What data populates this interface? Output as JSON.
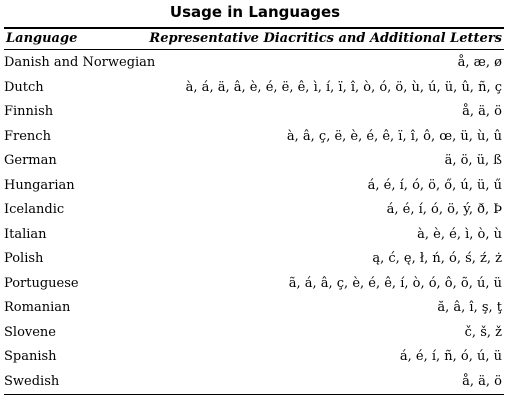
{
  "title": "Usage in Languages",
  "header": {
    "language": "Language",
    "diacritics": "Representative Diacritics and Additional Letters"
  },
  "rows": [
    {
      "language": "Danish and Norwegian",
      "diacritics": "å, æ, ø"
    },
    {
      "language": "Dutch",
      "diacritics": "à, á, ä, â, è, é, ë, ê, ì, í, ï, î, ò, ó, ö, ù, ú, ü, û, ñ, ç"
    },
    {
      "language": "Finnish",
      "diacritics": "å, ä, ö"
    },
    {
      "language": "French",
      "diacritics": "à, â, ç, ë, è, é, ê, ï, î, ô, œ, ü, ù, û"
    },
    {
      "language": "German",
      "diacritics": "ä, ö, ü, ß"
    },
    {
      "language": "Hungarian",
      "diacritics": "á, é, í, ó, ö, ő, ú, ü, ű"
    },
    {
      "language": "Icelandic",
      "diacritics": "á, é, í, ó, ö, ý, ð, Þ"
    },
    {
      "language": "Italian",
      "diacritics": "à, è, é, ì, ò, ù"
    },
    {
      "language": "Polish",
      "diacritics": "ą, ć, ę, ł, ń, ó, ś, ź, ż"
    },
    {
      "language": "Portuguese",
      "diacritics": "ã, á, â, ç, è, é, ê, í, ò, ó, ô, õ, ú, ü"
    },
    {
      "language": "Romanian",
      "diacritics": "ă, â, î, ş, ţ"
    },
    {
      "language": "Slovene",
      "diacritics": "č, š, ž"
    },
    {
      "language": "Spanish",
      "diacritics": "á, é, í, ñ, ó, ú, ü"
    },
    {
      "language": "Swedish",
      "diacritics": "å, ä, ö"
    }
  ]
}
